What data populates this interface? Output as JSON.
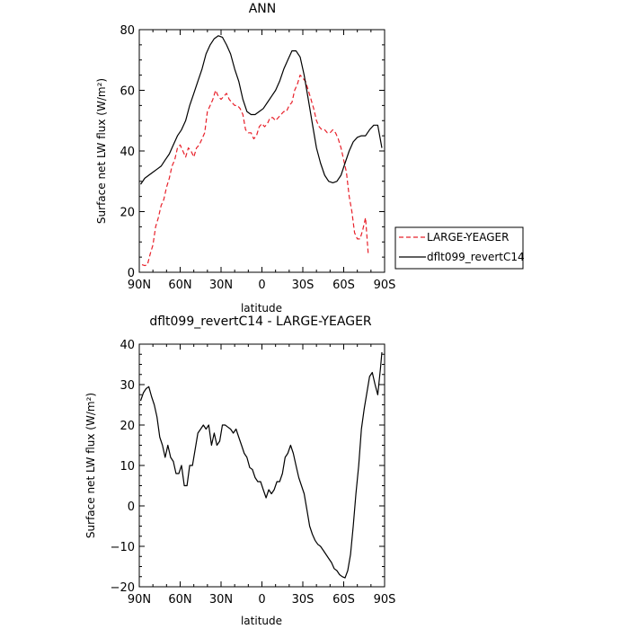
{
  "chart_data": [
    {
      "type": "line",
      "title": "ANN",
      "xlabel": "latitude",
      "ylabel": "Surface net LW flux (W/m²)",
      "xlim": [
        90,
        -90
      ],
      "ylim": [
        0,
        80
      ],
      "x_ticks": [
        90,
        60,
        30,
        0,
        -30,
        -60,
        -90
      ],
      "x_tick_labels": [
        "90N",
        "60N",
        "30N",
        "0",
        "30S",
        "60S",
        "90S"
      ],
      "y_ticks": [
        0,
        20,
        40,
        60,
        80
      ],
      "y_tick_labels": [
        "0",
        "20",
        "40",
        "60",
        "80"
      ],
      "legend": "right",
      "series": [
        {
          "name": "LARGE-YEAGER",
          "color": "#e8202a",
          "dash": "dashed",
          "x": [
            88,
            86,
            84,
            82,
            80,
            78,
            76,
            74,
            72,
            70,
            68,
            66,
            64,
            62,
            60,
            58,
            56,
            54,
            52,
            50,
            48,
            46,
            44,
            42,
            40,
            38,
            36,
            34,
            32,
            30,
            28,
            26,
            24,
            22,
            20,
            18,
            16,
            14,
            12,
            10,
            8,
            6,
            4,
            2,
            0,
            -2,
            -4,
            -6,
            -8,
            -10,
            -12,
            -14,
            -16,
            -18,
            -20,
            -22,
            -24,
            -26,
            -28,
            -30,
            -32,
            -34,
            -36,
            -38,
            -40,
            -42,
            -44,
            -46,
            -48,
            -50,
            -52,
            -54,
            -56,
            -58,
            -60,
            -62,
            -64,
            -66,
            -68,
            -70,
            -72,
            -74,
            -76,
            -78
          ],
          "y": [
            2.5,
            2.2,
            2.5,
            6,
            9,
            15,
            18,
            22,
            24,
            28,
            31,
            35,
            37,
            41,
            42,
            40,
            38,
            41,
            40,
            38,
            41,
            42,
            44,
            46,
            53,
            55,
            57,
            60,
            58,
            57,
            58,
            59,
            57,
            56,
            55,
            55,
            54,
            52,
            47,
            46,
            46,
            44,
            45,
            48,
            49,
            48,
            49,
            51,
            51,
            50,
            51,
            52,
            53,
            53,
            55,
            56,
            60,
            62,
            65,
            64,
            63,
            60,
            57,
            54,
            50,
            48,
            47,
            47,
            46,
            46,
            47,
            46,
            44,
            41,
            37,
            33,
            25,
            20,
            13,
            11,
            11,
            14,
            18,
            6
          ]
        },
        {
          "name": "dflt099_revertC14",
          "color": "#000000",
          "dash": "solid",
          "x": [
            89,
            86,
            83,
            80,
            77,
            74,
            71,
            68,
            65,
            62,
            59,
            56,
            53,
            50,
            47,
            44,
            41,
            38,
            35,
            32,
            29,
            26,
            23,
            20,
            17,
            14,
            11,
            8,
            5,
            2,
            -1,
            -4,
            -7,
            -10,
            -13,
            -16,
            -19,
            -22,
            -25,
            -28,
            -31,
            -34,
            -37,
            -40,
            -43,
            -46,
            -49,
            -52,
            -55,
            -58,
            -61,
            -64,
            -67,
            -70,
            -73,
            -76,
            -79,
            -82,
            -85,
            -88
          ],
          "y": [
            29,
            31,
            32,
            33,
            34,
            35,
            37,
            39,
            42,
            45,
            47,
            50,
            55,
            59,
            63,
            67,
            72,
            75,
            77,
            78,
            77.5,
            75,
            72,
            67,
            63,
            57,
            53,
            52,
            52,
            53,
            54,
            56,
            58,
            60,
            63,
            67,
            70,
            73,
            73,
            71,
            65,
            57,
            49,
            41,
            36,
            32,
            30,
            29.5,
            30,
            32,
            36,
            40,
            43,
            44.5,
            45,
            45,
            47,
            48.5,
            48.5,
            41
          ]
        }
      ]
    },
    {
      "type": "line",
      "title": "dflt099_revertC14 - LARGE-YEAGER",
      "xlabel": "latitude",
      "ylabel": "Surface net LW flux (W/m²)",
      "xlim": [
        90,
        -90
      ],
      "ylim": [
        -20,
        40
      ],
      "x_ticks": [
        90,
        60,
        30,
        0,
        -30,
        -60,
        -90
      ],
      "x_tick_labels": [
        "90N",
        "60N",
        "30N",
        "0",
        "30S",
        "60S",
        "90S"
      ],
      "y_ticks": [
        -20,
        -10,
        0,
        10,
        20,
        30,
        40
      ],
      "y_tick_labels": [
        "−20",
        "−10",
        "0",
        "10",
        "20",
        "30",
        "40"
      ],
      "series": [
        {
          "color": "#000000",
          "dash": "solid",
          "x": [
            89,
            87,
            85,
            83,
            81,
            79,
            77,
            75,
            73,
            71,
            69,
            67,
            65,
            63,
            61,
            59,
            57,
            55,
            53,
            51,
            49,
            47,
            45,
            43,
            41,
            39,
            37,
            35,
            33,
            31,
            29,
            27,
            25,
            23,
            21,
            19,
            17,
            15,
            13,
            11,
            9,
            7,
            5,
            3,
            1,
            -1,
            -3,
            -5,
            -7,
            -9,
            -11,
            -13,
            -15,
            -17,
            -19,
            -21,
            -23,
            -25,
            -27,
            -29,
            -31,
            -33,
            -35,
            -37,
            -39,
            -41,
            -43,
            -45,
            -47,
            -49,
            -51,
            -53,
            -55,
            -57,
            -59,
            -61,
            -63,
            -65,
            -67,
            -69,
            -71,
            -73,
            -75,
            -77,
            -79,
            -81,
            -83,
            -85,
            -87,
            -88
          ],
          "y": [
            26,
            28,
            29,
            29.5,
            27,
            25,
            22,
            17,
            15,
            12,
            15,
            12,
            11,
            8,
            8,
            10,
            5,
            5,
            10,
            10,
            14,
            18,
            19,
            20,
            19,
            20,
            15,
            18,
            15,
            16,
            20,
            20,
            19.5,
            19,
            18,
            19,
            17,
            15,
            13,
            12,
            9.5,
            9,
            7,
            6,
            6,
            4,
            2,
            4,
            3,
            4,
            6,
            6,
            8,
            12,
            13,
            15,
            13,
            10,
            7,
            5,
            3,
            -1,
            -5,
            -7,
            -8.5,
            -9.5,
            -10,
            -11,
            -12,
            -13,
            -14,
            -15.5,
            -16,
            -17,
            -17.5,
            -17.8,
            -16,
            -12,
            -5,
            3,
            10,
            19,
            24,
            28,
            32,
            33,
            30,
            27.5,
            34,
            38
          ]
        }
      ]
    }
  ]
}
